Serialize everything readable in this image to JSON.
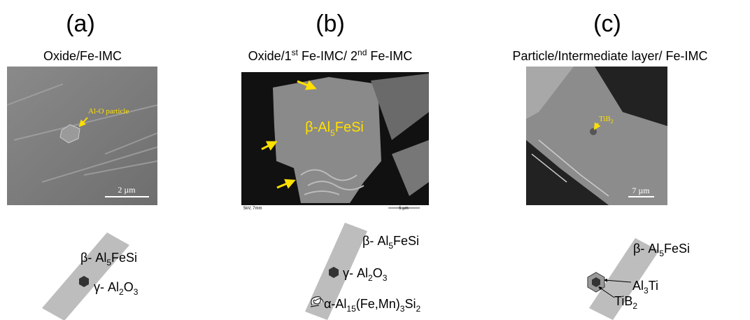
{
  "panels": [
    {
      "label": "(a)",
      "title": {
        "parts": [
          "Oxide/Fe-IMC"
        ]
      },
      "image": {
        "labels": [
          {
            "parts": [
              "Al-O particle"
            ]
          },
          {
            "parts": [
              "2 µm"
            ]
          }
        ]
      },
      "schematic": {
        "labels": [
          {
            "parts": [
              "β- Al",
              "5",
              "FeSi"
            ]
          },
          {
            "parts": [
              "γ- Al",
              "2",
              "O",
              "3"
            ]
          }
        ]
      }
    },
    {
      "label": "(b)",
      "title": {
        "parts": [
          "Oxide/1",
          "st",
          " Fe-IMC/ 2",
          "nd",
          " Fe-IMC"
        ]
      },
      "image": {
        "labels": [
          {
            "parts": [
              "β-Al",
              "5",
              "FeSi"
            ]
          },
          {
            "parts": [
              "5kV, 7mm"
            ]
          },
          {
            "parts": [
              "5 µm"
            ]
          }
        ]
      },
      "schematic": {
        "labels": [
          {
            "parts": [
              "β- Al",
              "5",
              "FeSi"
            ]
          },
          {
            "parts": [
              "γ- Al",
              "2",
              "O",
              "3"
            ]
          },
          {
            "parts": [
              "α-Al",
              "15",
              "(Fe,Mn)",
              "3",
              "Si",
              "2"
            ]
          }
        ]
      }
    },
    {
      "label": "(c)",
      "title": {
        "parts": [
          "Particle/Intermediate layer/ Fe-IMC"
        ]
      },
      "image": {
        "labels": [
          {
            "parts": [
              "TiB",
              "2"
            ]
          },
          {
            "parts": [
              "7 µm"
            ]
          }
        ]
      },
      "schematic": {
        "labels": [
          {
            "parts": [
              "β- Al",
              "5",
              "FeSi"
            ]
          },
          {
            "parts": [
              "Al",
              "3",
              "Ti"
            ]
          },
          {
            "parts": [
              "TiB",
              "2"
            ]
          }
        ]
      }
    }
  ]
}
